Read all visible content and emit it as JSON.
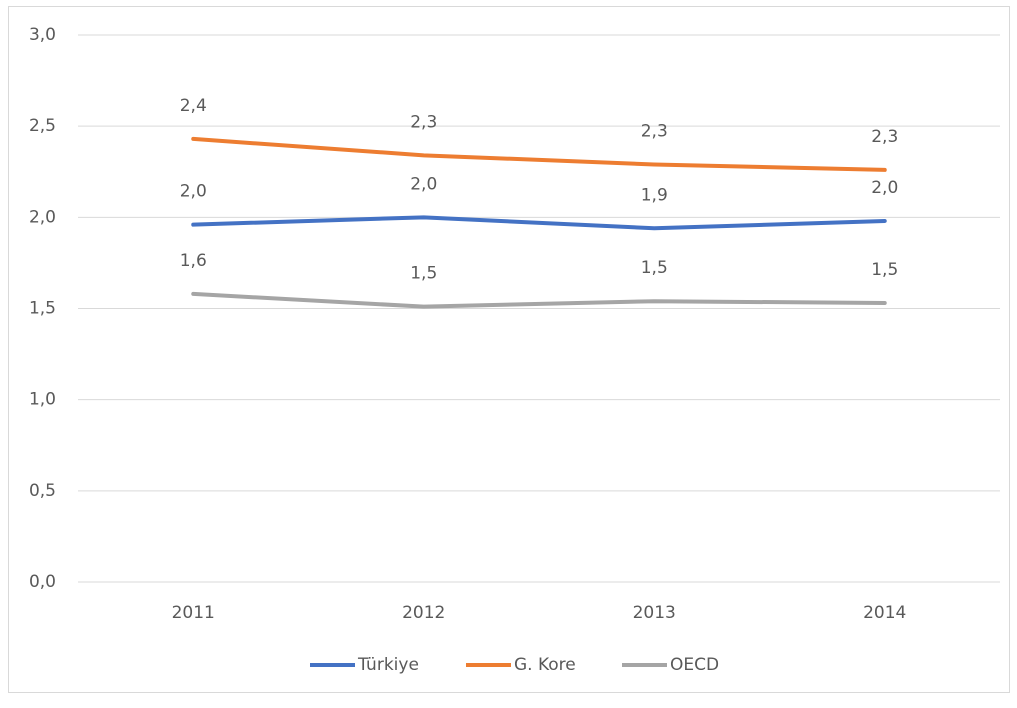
{
  "chart_data": {
    "type": "line",
    "categories": [
      "2011",
      "2012",
      "2013",
      "2014"
    ],
    "series": [
      {
        "name": "Türkiye",
        "color": "#4472c4",
        "values": [
          1.96,
          2.0,
          1.94,
          1.98
        ],
        "value_labels": [
          "2,0",
          "2,0",
          "1,9",
          "2,0"
        ]
      },
      {
        "name": "G. Kore",
        "color": "#ed7d31",
        "values": [
          2.43,
          2.34,
          2.29,
          2.26
        ],
        "value_labels": [
          "2,4",
          "2,3",
          "2,3",
          "2,3"
        ]
      },
      {
        "name": "OECD",
        "color": "#a5a5a5",
        "values": [
          1.58,
          1.51,
          1.54,
          1.53
        ],
        "value_labels": [
          "1,6",
          "1,5",
          "1,5",
          "1,5"
        ]
      }
    ],
    "ylim": [
      0,
      3
    ],
    "yticks": [
      {
        "value": 0,
        "label": "0,0"
      },
      {
        "value": 0.5,
        "label": "0,5"
      },
      {
        "value": 1,
        "label": "1,0"
      },
      {
        "value": 1.5,
        "label": "1,5"
      },
      {
        "value": 2,
        "label": "2,0"
      },
      {
        "value": 2.5,
        "label": "2,5"
      },
      {
        "value": 3,
        "label": "3,0"
      }
    ],
    "grid": true,
    "legend": "bottom"
  }
}
